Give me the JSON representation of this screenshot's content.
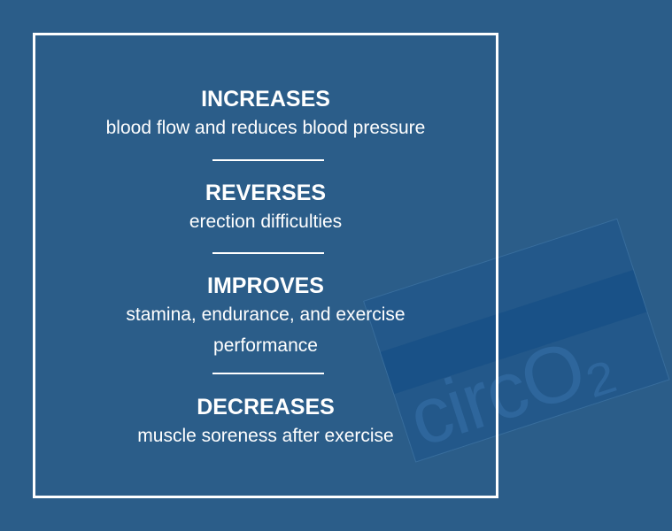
{
  "background_color": "#2b5d89",
  "product_logo": "circO2",
  "benefits": [
    {
      "heading": "INCREASES",
      "text": [
        "blood flow and reduces blood pressure"
      ]
    },
    {
      "heading": "REVERSES",
      "text": [
        "erection difficulties"
      ]
    },
    {
      "heading": "IMPROVES",
      "text": [
        "stamina, endurance, and exercise",
        "performance"
      ]
    },
    {
      "heading": "DECREASES",
      "text": [
        "muscle soreness after exercise"
      ]
    }
  ]
}
